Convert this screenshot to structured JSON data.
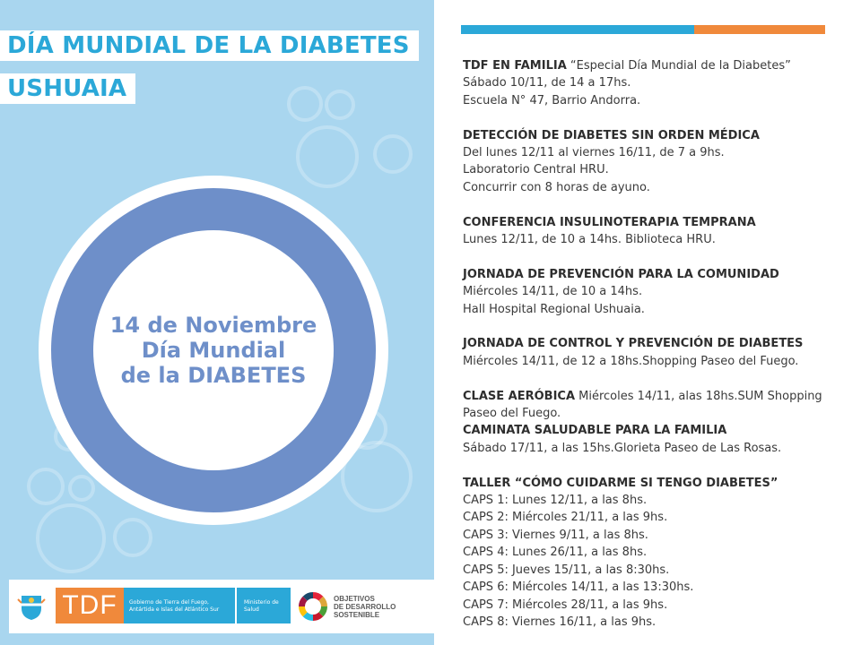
{
  "poster": {
    "title_line1": "DÍA MUNDIAL DE LA DIABETES",
    "title_line2": "USHUAIA",
    "circle": {
      "line1": "14 de Noviembre",
      "line2": "Día Mundial",
      "line3": "de la DIABETES"
    },
    "colors": {
      "background": "#a9d6ef",
      "accent_blue": "#2ba8d8",
      "ring_blue": "#6e8fc9",
      "orange": "#f0893b"
    }
  },
  "footer": {
    "tdf_logo": "TDF",
    "gov_line1": "Gobierno de Tierra del Fuego,",
    "gov_line2": "Antártida e Islas del Atlántico Sur",
    "ministry_line1": "Ministerio de",
    "ministry_line2": "Salud",
    "sdg_line1": "OBJETIVOS",
    "sdg_line2": "DE DESARROLLO",
    "sdg_line3": "SOSTENIBLE"
  },
  "events": {
    "e1": {
      "title": "TDF EN FAMILIA",
      "title_rest": " “Especial Día Mundial de la Diabetes”",
      "line1": "Sábado 10/11, de 14 a 17hs.",
      "line2": "Escuela N° 47, Barrio Andorra."
    },
    "e2": {
      "title": "DETECCIÓN DE DIABETES SIN ORDEN MÉDICA",
      "line1": "Del lunes 12/11 al viernes 16/11, de 7 a 9hs.",
      "line2": "Laboratorio Central HRU.",
      "line3": "Concurrir con 8 horas de ayuno."
    },
    "e3": {
      "title": "CONFERENCIA INSULINOTERAPIA TEMPRANA",
      "line1": "Lunes 12/11, de 10 a 14hs. Biblioteca HRU."
    },
    "e4": {
      "title": "JORNADA DE PREVENCIÓN PARA LA COMUNIDAD",
      "line1": "Miércoles 14/11, de 10 a 14hs.",
      "line2": "Hall Hospital Regional Ushuaia."
    },
    "e5": {
      "title": "JORNADA DE CONTROL Y PREVENCIÓN DE DIABETES",
      "line1": "Miércoles 14/11, de 12 a 18hs.Shopping Paseo del Fuego."
    },
    "e6": {
      "title": "CLASE AERÓBICA",
      "title_rest": " Miércoles 14/11, alas 18hs.SUM Shopping",
      "line2": "Paseo del Fuego."
    },
    "e7": {
      "title": "CAMINATA SALUDABLE PARA LA FAMILIA",
      "line1": "Sábado 17/11, a las 15hs.Glorieta Paseo de Las Rosas."
    },
    "e8": {
      "title": "TALLER “CÓMO CUIDARME SI TENGO DIABETES”",
      "caps": [
        "CAPS 1: Lunes 12/11, a las 8hs.",
        "CAPS 2: Miércoles 21/11, a las 9hs.",
        "CAPS 3: Viernes 9/11, a las 8hs.",
        "CAPS 4: Lunes 26/11, a las 8hs.",
        "CAPS 5: Jueves 15/11, a las 8:30hs.",
        "CAPS 6: Miércoles 14/11, a las 13:30hs.",
        "CAPS 7: Miércoles 28/11, a las 9hs.",
        "CAPS 8: Viernes 16/11, a las 9hs."
      ]
    }
  }
}
